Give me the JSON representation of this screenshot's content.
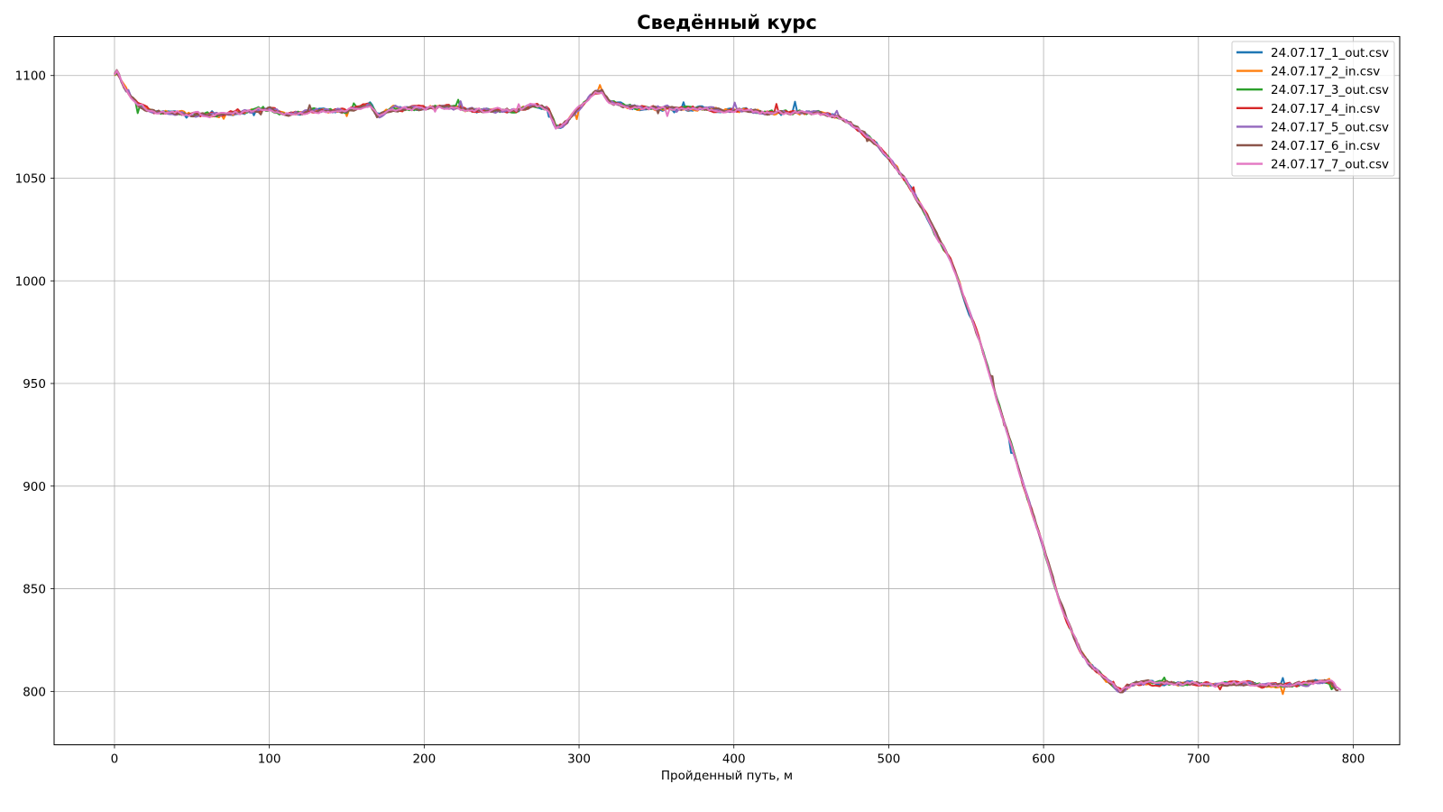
{
  "chart_data": {
    "type": "line",
    "title": "Сведённый курс",
    "xlabel": "Пройденный путь, м",
    "ylabel": "",
    "xlim": [
      -39,
      830
    ],
    "ylim": [
      774,
      1119
    ],
    "xticks": [
      0,
      100,
      200,
      300,
      400,
      500,
      600,
      700,
      800
    ],
    "yticks": [
      800,
      850,
      900,
      950,
      1000,
      1050,
      1100
    ],
    "grid": true,
    "legend_position": "top-right",
    "series": [
      {
        "name": "24.07.17_1_out.csv",
        "color": "#1f77b4"
      },
      {
        "name": "24.07.17_2_in.csv",
        "color": "#ff7f0e"
      },
      {
        "name": "24.07.17_3_out.csv",
        "color": "#2ca02c"
      },
      {
        "name": "24.07.17_4_in.csv",
        "color": "#d62728"
      },
      {
        "name": "24.07.17_5_out.csv",
        "color": "#9467bd"
      },
      {
        "name": "24.07.17_6_in.csv",
        "color": "#8c564b"
      },
      {
        "name": "24.07.17_7_out.csv",
        "color": "#e377c2"
      }
    ],
    "profile": {
      "x": [
        0,
        2,
        5,
        10,
        15,
        20,
        25,
        30,
        40,
        50,
        60,
        70,
        80,
        90,
        100,
        110,
        120,
        130,
        140,
        150,
        160,
        165,
        170,
        175,
        180,
        190,
        200,
        210,
        220,
        230,
        240,
        250,
        260,
        270,
        280,
        285,
        290,
        300,
        305,
        310,
        315,
        320,
        330,
        340,
        350,
        360,
        370,
        380,
        390,
        400,
        410,
        420,
        430,
        440,
        450,
        460,
        465,
        470,
        475,
        480,
        485,
        490,
        495,
        500,
        505,
        510,
        515,
        520,
        525,
        530,
        535,
        540,
        545,
        550,
        555,
        560,
        565,
        570,
        575,
        580,
        585,
        590,
        595,
        600,
        605,
        610,
        615,
        620,
        625,
        630,
        635,
        640,
        645,
        650,
        655,
        660,
        670,
        680,
        690,
        700,
        710,
        720,
        730,
        740,
        750,
        760,
        770,
        780,
        785,
        790
      ],
      "y": [
        1100,
        1102,
        1096,
        1090,
        1086,
        1084,
        1082,
        1082,
        1082,
        1081,
        1081,
        1081,
        1082,
        1083,
        1084,
        1081,
        1082,
        1083,
        1083,
        1083,
        1085,
        1086,
        1080,
        1082,
        1084,
        1084,
        1084,
        1085,
        1084,
        1083,
        1083,
        1083,
        1083,
        1086,
        1084,
        1075,
        1076,
        1084,
        1088,
        1092,
        1092,
        1087,
        1085,
        1084,
        1084,
        1084,
        1084,
        1084,
        1083,
        1083,
        1083,
        1082,
        1082,
        1082,
        1082,
        1081,
        1080,
        1079,
        1077,
        1074,
        1071,
        1068,
        1064,
        1060,
        1055,
        1050,
        1044,
        1038,
        1031,
        1023,
        1017,
        1010,
        1000,
        989,
        979,
        968,
        955,
        942,
        930,
        918,
        905,
        893,
        882,
        870,
        857,
        845,
        835,
        826,
        818,
        813,
        810,
        806,
        803,
        800,
        803,
        804,
        804,
        804,
        804,
        804,
        803,
        804,
        804,
        803,
        803,
        803,
        804,
        805,
        805,
        801
      ]
    }
  }
}
